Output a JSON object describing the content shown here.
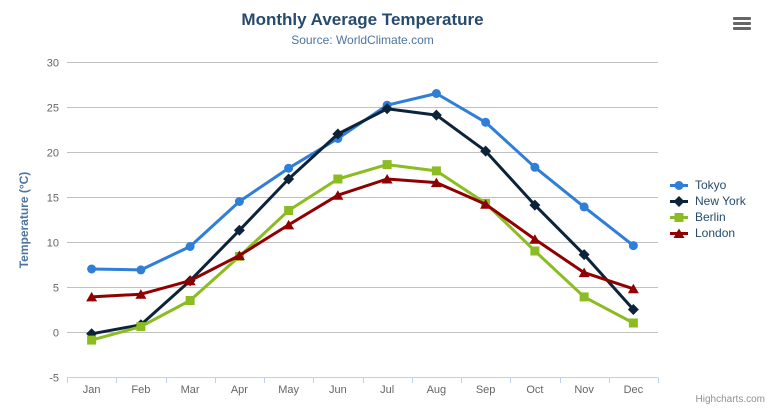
{
  "credit": {
    "label": "Highcharts.com"
  },
  "menu": {
    "icon": "hamburger-menu-icon"
  },
  "chart_data": {
    "type": "line",
    "title": "Monthly Average Temperature",
    "subtitle": "Source: WorldClimate.com",
    "xlabel": "",
    "ylabel": "Temperature (°C)",
    "categories": [
      "Jan",
      "Feb",
      "Mar",
      "Apr",
      "May",
      "Jun",
      "Jul",
      "Aug",
      "Sep",
      "Oct",
      "Nov",
      "Dec"
    ],
    "ylim": [
      -5,
      30
    ],
    "ytick_step": 5,
    "grid": true,
    "legend_position": "right",
    "axis_line_color": "#C0D0E0",
    "grid_color": "#C0C0C0",
    "label_color": "#666666",
    "series": [
      {
        "name": "Tokyo",
        "color": "#2f7ed8",
        "marker": "circle",
        "values": [
          7.0,
          6.9,
          9.5,
          14.5,
          18.2,
          21.5,
          25.2,
          26.5,
          23.3,
          18.3,
          13.9,
          9.6
        ]
      },
      {
        "name": "New York",
        "color": "#0d233a",
        "marker": "diamond",
        "values": [
          -0.2,
          0.8,
          5.7,
          11.3,
          17.0,
          22.0,
          24.8,
          24.1,
          20.1,
          14.1,
          8.6,
          2.5
        ]
      },
      {
        "name": "Berlin",
        "color": "#8bbc21",
        "marker": "square",
        "values": [
          -0.9,
          0.6,
          3.5,
          8.4,
          13.5,
          17.0,
          18.6,
          17.9,
          14.3,
          9.0,
          3.9,
          1.0
        ]
      },
      {
        "name": "London",
        "color": "#910000",
        "marker": "triangle",
        "values": [
          3.9,
          4.2,
          5.7,
          8.5,
          11.9,
          15.2,
          17.0,
          16.6,
          14.2,
          10.3,
          6.6,
          4.8
        ]
      }
    ]
  }
}
